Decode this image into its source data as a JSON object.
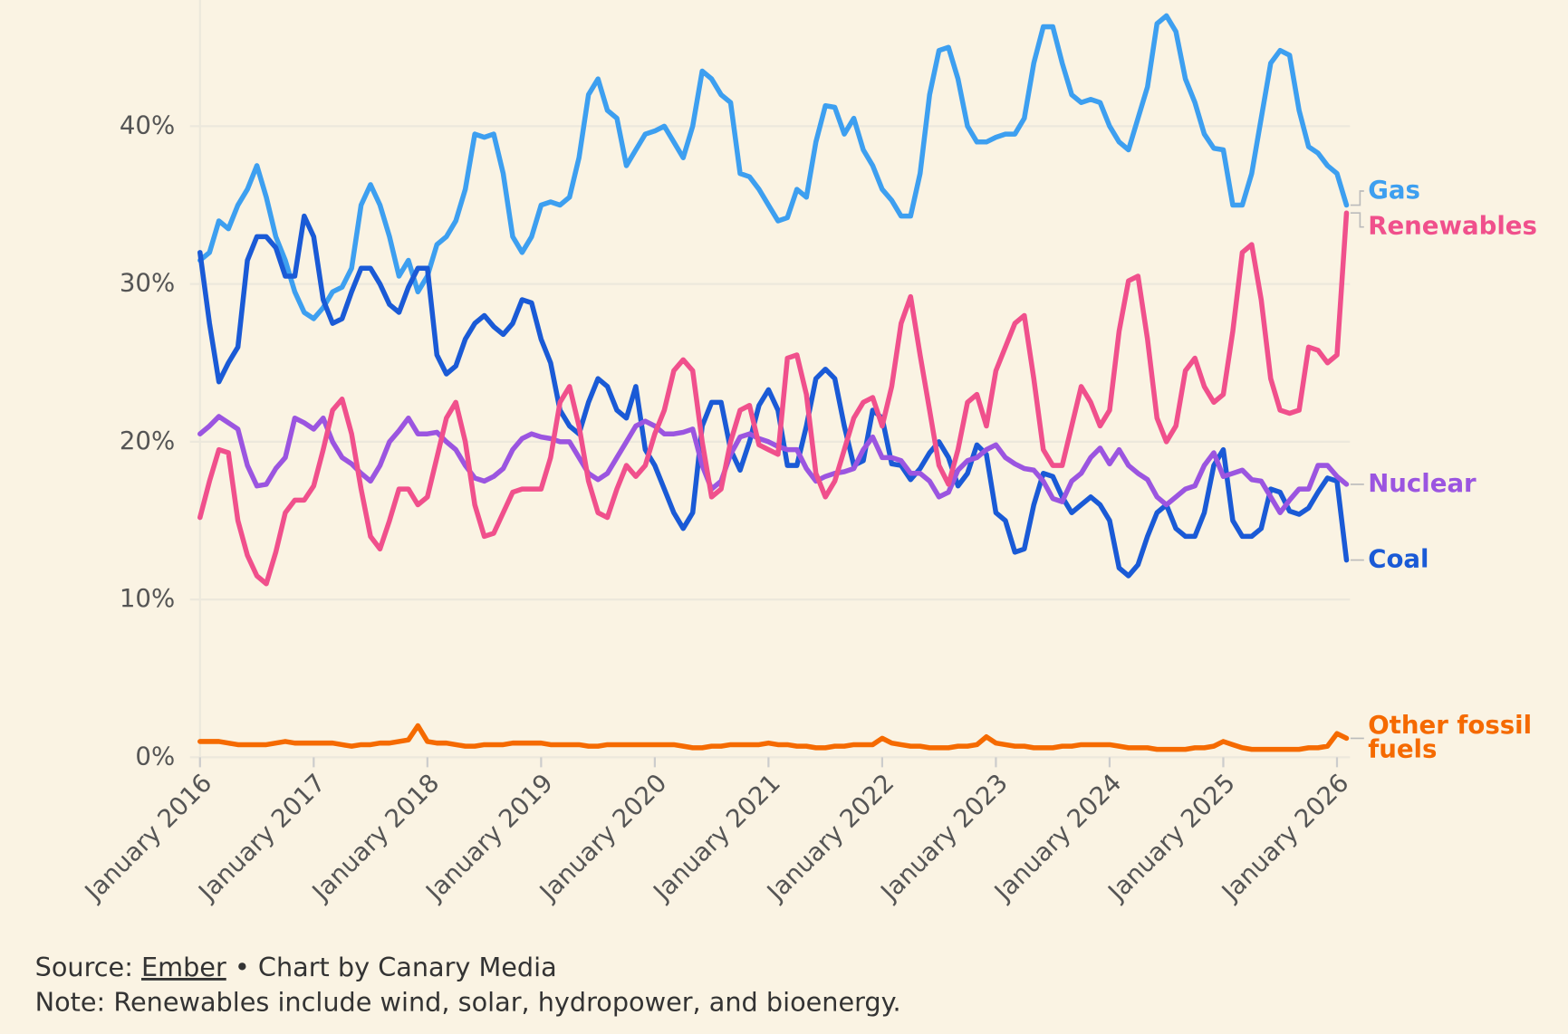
{
  "chart_data": {
    "type": "line",
    "x": [
      "2016-01",
      "2016-02",
      "2016-03",
      "2016-04",
      "2016-05",
      "2016-06",
      "2016-07",
      "2016-08",
      "2016-09",
      "2016-10",
      "2016-11",
      "2016-12",
      "2017-01",
      "2017-02",
      "2017-03",
      "2017-04",
      "2017-05",
      "2017-06",
      "2017-07",
      "2017-08",
      "2017-09",
      "2017-10",
      "2017-11",
      "2017-12",
      "2018-01",
      "2018-02",
      "2018-03",
      "2018-04",
      "2018-05",
      "2018-06",
      "2018-07",
      "2018-08",
      "2018-09",
      "2018-10",
      "2018-11",
      "2018-12",
      "2019-01",
      "2019-02",
      "2019-03",
      "2019-04",
      "2019-05",
      "2019-06",
      "2019-07",
      "2019-08",
      "2019-09",
      "2019-10",
      "2019-11",
      "2019-12",
      "2020-01",
      "2020-02",
      "2020-03",
      "2020-04",
      "2020-05",
      "2020-06",
      "2020-07",
      "2020-08",
      "2020-09",
      "2020-10",
      "2020-11",
      "2020-12",
      "2021-01",
      "2021-02",
      "2021-03",
      "2021-04",
      "2021-05",
      "2021-06",
      "2021-07",
      "2021-08",
      "2021-09",
      "2021-10",
      "2021-11",
      "2021-12",
      "2022-01",
      "2022-02",
      "2022-03",
      "2022-04",
      "2022-05",
      "2022-06",
      "2022-07",
      "2022-08",
      "2022-09",
      "2022-10",
      "2022-11",
      "2022-12",
      "2023-01",
      "2023-02",
      "2023-03",
      "2023-04",
      "2023-05",
      "2023-06",
      "2023-07",
      "2023-08",
      "2023-09",
      "2023-10",
      "2023-11",
      "2023-12",
      "2024-01",
      "2024-02",
      "2024-03",
      "2024-04",
      "2024-05",
      "2024-06",
      "2024-07",
      "2024-08",
      "2024-09",
      "2024-10",
      "2024-11",
      "2024-12",
      "2025-01",
      "2025-02",
      "2025-03",
      "2025-04",
      "2025-05",
      "2025-06",
      "2025-07",
      "2025-08",
      "2025-09",
      "2025-10",
      "2025-11",
      "2025-12",
      "2026-01",
      "2026-02"
    ],
    "xticks": [
      {
        "value": "2016-01",
        "label": "January 2016"
      },
      {
        "value": "2017-01",
        "label": "January 2017"
      },
      {
        "value": "2018-01",
        "label": "January 2018"
      },
      {
        "value": "2019-01",
        "label": "January 2019"
      },
      {
        "value": "2020-01",
        "label": "January 2020"
      },
      {
        "value": "2021-01",
        "label": "January 2021"
      },
      {
        "value": "2022-01",
        "label": "January 2022"
      },
      {
        "value": "2023-01",
        "label": "January 2023"
      },
      {
        "value": "2024-01",
        "label": "January 2024"
      },
      {
        "value": "2025-01",
        "label": "January 2025"
      },
      {
        "value": "2026-01",
        "label": "January 2026"
      }
    ],
    "ylim": [
      0,
      48
    ],
    "yticks": [
      {
        "value": 0,
        "label": "0%"
      },
      {
        "value": 10,
        "label": "10%"
      },
      {
        "value": 20,
        "label": "20%"
      },
      {
        "value": 30,
        "label": "30%"
      },
      {
        "value": 40,
        "label": "40%"
      }
    ],
    "grid": true,
    "series": [
      {
        "name": "Gas",
        "color": "#3d9ff0",
        "values": [
          31.5,
          32,
          34,
          33.5,
          35,
          36,
          37.5,
          35.5,
          33,
          31.5,
          29.5,
          28.2,
          27.8,
          28.5,
          29.5,
          29.8,
          31,
          35,
          36.3,
          35,
          33,
          30.5,
          31.5,
          29.5,
          30.5,
          32.5,
          33,
          34,
          36,
          39.5,
          39.3,
          39.5,
          37,
          33,
          32,
          33,
          35,
          35.2,
          35,
          35.5,
          38,
          42,
          43,
          41,
          40.5,
          37.5,
          38.5,
          39.5,
          39.7,
          40,
          39,
          38,
          40,
          43.5,
          43,
          42,
          41.5,
          37,
          36.8,
          36,
          35,
          34,
          34.2,
          36,
          35.5,
          39,
          41.3,
          41.2,
          39.5,
          40.5,
          38.5,
          37.5,
          36,
          35.3,
          34.3,
          34.3,
          37,
          42,
          44.8,
          45,
          43,
          40,
          39,
          39,
          39.3,
          39.5,
          39.5,
          40.5,
          44,
          46.3,
          46.3,
          44,
          42,
          41.5,
          41.7,
          41.5,
          40,
          39,
          38.5,
          40.5,
          42.5,
          46.5,
          47,
          46,
          43,
          41.5,
          39.5,
          38.6,
          38.5,
          35,
          35,
          37,
          40.5,
          44,
          44.8,
          44.5,
          41,
          38.7,
          38.3,
          37.5,
          37,
          35
        ]
      },
      {
        "name": "Coal",
        "color": "#1a5ad6",
        "values": [
          32,
          27.5,
          23.8,
          25,
          26,
          31.5,
          33,
          33,
          32.3,
          30.5,
          30.5,
          34.3,
          33,
          29,
          27.5,
          27.8,
          29.5,
          31,
          31,
          30,
          28.7,
          28.2,
          29.8,
          31,
          31,
          25.5,
          24.3,
          24.8,
          26.5,
          27.5,
          28,
          27.3,
          26.8,
          27.5,
          29,
          28.8,
          26.5,
          25,
          22,
          21,
          20.5,
          22.5,
          24,
          23.5,
          22,
          21.5,
          23.5,
          19.5,
          18.5,
          17,
          15.5,
          14.5,
          15.5,
          21,
          22.5,
          22.5,
          19.5,
          18.2,
          20,
          22.3,
          23.3,
          22,
          18.5,
          18.5,
          21,
          24,
          24.6,
          24,
          21,
          18.5,
          18.8,
          22,
          21.5,
          18.6,
          18.5,
          17.6,
          18.3,
          19.3,
          20,
          19,
          17.2,
          18,
          19.8,
          19.2,
          15.5,
          15,
          13,
          13.2,
          16,
          18,
          17.8,
          16.5,
          15.5,
          16,
          16.5,
          16,
          15,
          12,
          11.5,
          12.2,
          14,
          15.5,
          16,
          14.5,
          14,
          14,
          15.5,
          18.5,
          19.5,
          15,
          14,
          14,
          14.5,
          17,
          16.8,
          15.6,
          15.4,
          15.8,
          16.8,
          17.7,
          17.5,
          12.5
        ]
      },
      {
        "name": "Nuclear",
        "color": "#9b55e0",
        "values": [
          20.5,
          21,
          21.6,
          21.2,
          20.8,
          18.5,
          17.2,
          17.3,
          18.3,
          19,
          21.5,
          21.2,
          20.8,
          21.5,
          20,
          19,
          18.6,
          18,
          17.5,
          18.5,
          20,
          20.7,
          21.5,
          20.5,
          20.5,
          20.6,
          20,
          19.5,
          18.5,
          17.7,
          17.5,
          17.8,
          18.3,
          19.5,
          20.2,
          20.5,
          20.3,
          20.2,
          20,
          20,
          19,
          18,
          17.6,
          18,
          19,
          20,
          21,
          21.3,
          21,
          20.5,
          20.5,
          20.6,
          20.8,
          18.5,
          17,
          17.5,
          19.2,
          20.3,
          20.5,
          20.2,
          20,
          19.7,
          19.5,
          19.5,
          18.3,
          17.5,
          17.8,
          18,
          18.1,
          18.3,
          19.5,
          20.3,
          19,
          19,
          18.8,
          18,
          18,
          17.5,
          16.5,
          16.8,
          18.2,
          18.8,
          19,
          19.5,
          19.8,
          19,
          18.6,
          18.3,
          18.2,
          17.5,
          16.4,
          16.2,
          17.5,
          18,
          19,
          19.6,
          18.6,
          19.5,
          18.5,
          18,
          17.6,
          16.5,
          16,
          16.5,
          17,
          17.2,
          18.5,
          19.3,
          17.8,
          18,
          18.2,
          17.6,
          17.5,
          16.5,
          15.5,
          16.3,
          17,
          17,
          18.5,
          18.5,
          17.8,
          17.3
        ]
      },
      {
        "name": "Renewables",
        "color": "#f0508c",
        "values": [
          15.2,
          17.5,
          19.5,
          19.3,
          15,
          12.8,
          11.5,
          11,
          13,
          15.5,
          16.3,
          16.3,
          17.2,
          19.5,
          22,
          22.7,
          20.5,
          17,
          14,
          13.2,
          15,
          17,
          17,
          16,
          16.5,
          19,
          21.5,
          22.5,
          20,
          16,
          14,
          14.2,
          15.5,
          16.8,
          17,
          17,
          17,
          19,
          22.5,
          23.5,
          21,
          17.5,
          15.5,
          15.2,
          17,
          18.5,
          17.8,
          18.5,
          20.5,
          22,
          24.5,
          25.2,
          24.5,
          20,
          16.5,
          17,
          20,
          22,
          22.3,
          19.8,
          19.5,
          19.2,
          25.3,
          25.5,
          23,
          18,
          16.5,
          17.5,
          19.5,
          21.5,
          22.5,
          22.8,
          21,
          23.5,
          27.5,
          29.2,
          25.5,
          22,
          18.5,
          17.3,
          19.5,
          22.5,
          23,
          21,
          24.5,
          26,
          27.5,
          28,
          24,
          19.5,
          18.5,
          18.5,
          21,
          23.5,
          22.5,
          21,
          22,
          27,
          30.2,
          30.5,
          26.5,
          21.5,
          20,
          21,
          24.5,
          25.3,
          23.5,
          22.5,
          23,
          27,
          32,
          32.5,
          29,
          24,
          22,
          21.8,
          22,
          26,
          25.8,
          25,
          25.5,
          34.5
        ]
      },
      {
        "name": "Other fossil fuels",
        "color": "#f56a00",
        "values": [
          1.0,
          1.0,
          1.0,
          0.9,
          0.8,
          0.8,
          0.8,
          0.8,
          0.9,
          1.0,
          0.9,
          0.9,
          0.9,
          0.9,
          0.9,
          0.8,
          0.7,
          0.8,
          0.8,
          0.9,
          0.9,
          1.0,
          1.1,
          2.0,
          1.0,
          0.9,
          0.9,
          0.8,
          0.7,
          0.7,
          0.8,
          0.8,
          0.8,
          0.9,
          0.9,
          0.9,
          0.9,
          0.8,
          0.8,
          0.8,
          0.8,
          0.7,
          0.7,
          0.8,
          0.8,
          0.8,
          0.8,
          0.8,
          0.8,
          0.8,
          0.8,
          0.7,
          0.6,
          0.6,
          0.7,
          0.7,
          0.8,
          0.8,
          0.8,
          0.8,
          0.9,
          0.8,
          0.8,
          0.7,
          0.7,
          0.6,
          0.6,
          0.7,
          0.7,
          0.8,
          0.8,
          0.8,
          1.2,
          0.9,
          0.8,
          0.7,
          0.7,
          0.6,
          0.6,
          0.6,
          0.7,
          0.7,
          0.8,
          1.3,
          0.9,
          0.8,
          0.7,
          0.7,
          0.6,
          0.6,
          0.6,
          0.7,
          0.7,
          0.8,
          0.8,
          0.8,
          0.8,
          0.7,
          0.6,
          0.6,
          0.6,
          0.5,
          0.5,
          0.5,
          0.5,
          0.6,
          0.6,
          0.7,
          1.0,
          0.8,
          0.6,
          0.5,
          0.5,
          0.5,
          0.5,
          0.5,
          0.5,
          0.6,
          0.6,
          0.7,
          1.5,
          1.2
        ]
      }
    ],
    "source_label": "Source:",
    "source_link": "Ember",
    "credit": "• Chart by Canary Media",
    "note": "Note: Renewables include wind, solar, hydropower, and bioenergy."
  }
}
